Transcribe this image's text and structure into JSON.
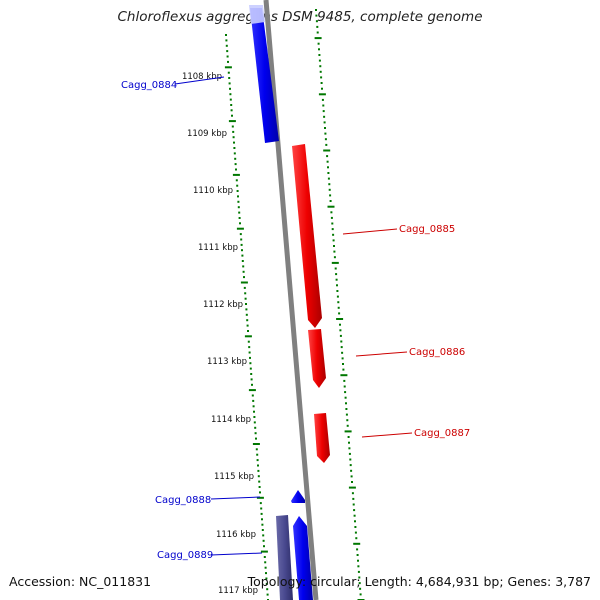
{
  "title": "Chloroflexus aggregans DSM 9485, complete genome",
  "accession": "Accession: NC_011831",
  "summary": "Topology: circular; Length: 4,684,931 bp; Genes: 3,787",
  "ticks": [
    {
      "label": "1108 kbp"
    },
    {
      "label": "1109 kbp"
    },
    {
      "label": "1110 kbp"
    },
    {
      "label": "1111 kbp"
    },
    {
      "label": "1112 kbp"
    },
    {
      "label": "1113 kbp"
    },
    {
      "label": "1114 kbp"
    },
    {
      "label": "1115 kbp"
    },
    {
      "label": "1116 kbp"
    },
    {
      "label": "1117 kbp"
    }
  ],
  "genes": [
    {
      "name": "Cagg_0884",
      "strand": "forward",
      "color": "#0000ee"
    },
    {
      "name": "Cagg_0885",
      "strand": "reverse",
      "color": "#ee0000"
    },
    {
      "name": "Cagg_0886",
      "strand": "reverse",
      "color": "#ee0000"
    },
    {
      "name": "Cagg_0887",
      "strand": "reverse",
      "color": "#ee0000"
    },
    {
      "name": "Cagg_0888",
      "strand": "forward",
      "color": "#0000ee"
    },
    {
      "name": "Cagg_0889",
      "strand": "forward",
      "color": "#000080"
    }
  ],
  "colors": {
    "forward_gene": "#0000ee",
    "reverse_gene": "#ee0000",
    "backbone": "#808080",
    "ticks": "#007700"
  }
}
